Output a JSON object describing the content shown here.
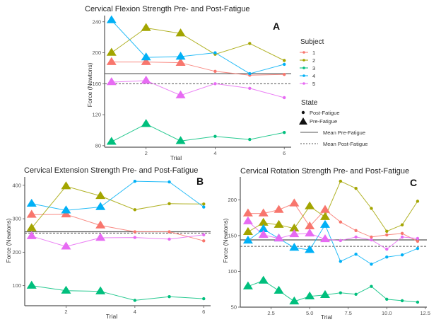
{
  "legend": {
    "subject_title": "Subject",
    "subjects": [
      "1",
      "2",
      "3",
      "4",
      "5"
    ],
    "subject_colors": [
      "#F8766D",
      "#A3A500",
      "#00BF7D",
      "#00B0F6",
      "#E76BF3"
    ],
    "state_title": "State",
    "states": [
      "Post-Fatigue",
      "Pre-Fatigue"
    ],
    "lines": [
      "Mean Pre-Fatigue",
      "Mean Post-Fatigue"
    ],
    "mean_line_color": "#555555"
  },
  "chart_data": [
    {
      "id": "A",
      "type": "line",
      "panel_letter": "A",
      "title": "Cervical Flexion Strength Pre- and Post-Fatigue",
      "xlabel": "Trial",
      "ylabel": "Force (Newtons)",
      "xlim": [
        0.8,
        6.2
      ],
      "ylim": [
        78,
        248
      ],
      "xticks": [
        2,
        4,
        6
      ],
      "xtick_labels": [
        "2",
        "4",
        "6"
      ],
      "yticks": [
        80,
        120,
        160,
        200,
        240
      ],
      "ytick_labels": [
        "80",
        "120",
        "160",
        "200",
        "240"
      ],
      "pre_trials": [
        1,
        2,
        3
      ],
      "post_trials": [
        4,
        5,
        6
      ],
      "mean_pre": 173,
      "mean_post": 160,
      "series": [
        {
          "name": "1",
          "pre": [
            188,
            188,
            187
          ],
          "post": [
            176,
            171,
            172
          ]
        },
        {
          "name": "2",
          "pre": [
            200,
            232,
            225
          ],
          "post": [
            198,
            212,
            190
          ]
        },
        {
          "name": "3",
          "pre": [
            85,
            108,
            86
          ],
          "post": [
            92,
            88,
            97
          ]
        },
        {
          "name": "4",
          "pre": [
            242,
            194,
            195
          ],
          "post": [
            200,
            173,
            185
          ]
        },
        {
          "name": "5",
          "pre": [
            162,
            164,
            145
          ],
          "post": [
            160,
            154,
            142
          ]
        }
      ],
      "grid": false,
      "legend": "right"
    },
    {
      "id": "B",
      "type": "line",
      "panel_letter": "B",
      "title": "Cervical Extension Strength Pre- and Post-Fatigue",
      "xlabel": "Trial",
      "ylabel": "Force (Newtons)",
      "xlim": [
        0.8,
        6.2
      ],
      "ylim": [
        40,
        425
      ],
      "xticks": [
        2,
        4,
        6
      ],
      "xtick_labels": [
        "2",
        "4",
        "6"
      ],
      "yticks": [
        100,
        200,
        300,
        400
      ],
      "ytick_labels": [
        "100",
        "200",
        "300",
        "400"
      ],
      "pre_trials": [
        1,
        2,
        3
      ],
      "post_trials": [
        4,
        5,
        6
      ],
      "mean_pre": 261,
      "mean_post": 257,
      "series": [
        {
          "name": "1",
          "pre": [
            312,
            313,
            280
          ],
          "post": [
            261,
            261,
            234
          ]
        },
        {
          "name": "2",
          "pre": [
            272,
            397,
            368
          ],
          "post": [
            327,
            345,
            344
          ]
        },
        {
          "name": "3",
          "pre": [
            100,
            85,
            83
          ],
          "post": [
            56,
            67,
            61
          ]
        },
        {
          "name": "4",
          "pre": [
            345,
            325,
            335
          ],
          "post": [
            412,
            410,
            335
          ]
        },
        {
          "name": "5",
          "pre": [
            248,
            217,
            243
          ],
          "post": [
            244,
            239,
            252
          ]
        }
      ],
      "grid": false,
      "legend": "none"
    },
    {
      "id": "C",
      "type": "line",
      "panel_letter": "C",
      "title": "Cervical Rotation Strength Pre- and Post-Fatigue",
      "xlabel": "Trial",
      "ylabel": "Force (Newtons)",
      "xlim": [
        0.5,
        12.6
      ],
      "ylim": [
        50,
        232
      ],
      "xticks": [
        2.5,
        5.0,
        7.5,
        10.0,
        12.5
      ],
      "xtick_labels": [
        "2.5",
        "5.0",
        "7.5",
        "10.0",
        "12.5"
      ],
      "yticks": [
        50,
        100,
        150,
        200
      ],
      "ytick_labels": [
        "50",
        "100",
        "150",
        "200"
      ],
      "pre_trials": [
        1,
        2,
        3,
        4,
        5,
        6
      ],
      "post_trials": [
        7,
        8,
        9,
        10,
        11,
        12
      ],
      "mean_pre": 144,
      "mean_post": 135,
      "series": [
        {
          "name": "1",
          "pre": [
            181,
            181,
            186,
            195,
            163,
            186
          ],
          "post": [
            169,
            157,
            148,
            151,
            153,
            142
          ]
        },
        {
          "name": "2",
          "pre": [
            155,
            168,
            165,
            160,
            191,
            176
          ],
          "post": [
            226,
            216,
            188,
            156,
            165,
            198
          ]
        },
        {
          "name": "3",
          "pre": [
            79,
            87,
            73,
            58,
            65,
            67
          ],
          "post": [
            70,
            68,
            79,
            61,
            59,
            57
          ]
        },
        {
          "name": "4",
          "pre": [
            143,
            159,
            146,
            133,
            130,
            165
          ],
          "post": [
            114,
            124,
            110,
            120,
            123,
            132
          ]
        },
        {
          "name": "5",
          "pre": [
            170,
            151,
            146,
            152,
            153,
            145
          ],
          "post": [
            143,
            148,
            144,
            131,
            148,
            146
          ]
        }
      ],
      "grid": false,
      "legend": "none"
    }
  ]
}
